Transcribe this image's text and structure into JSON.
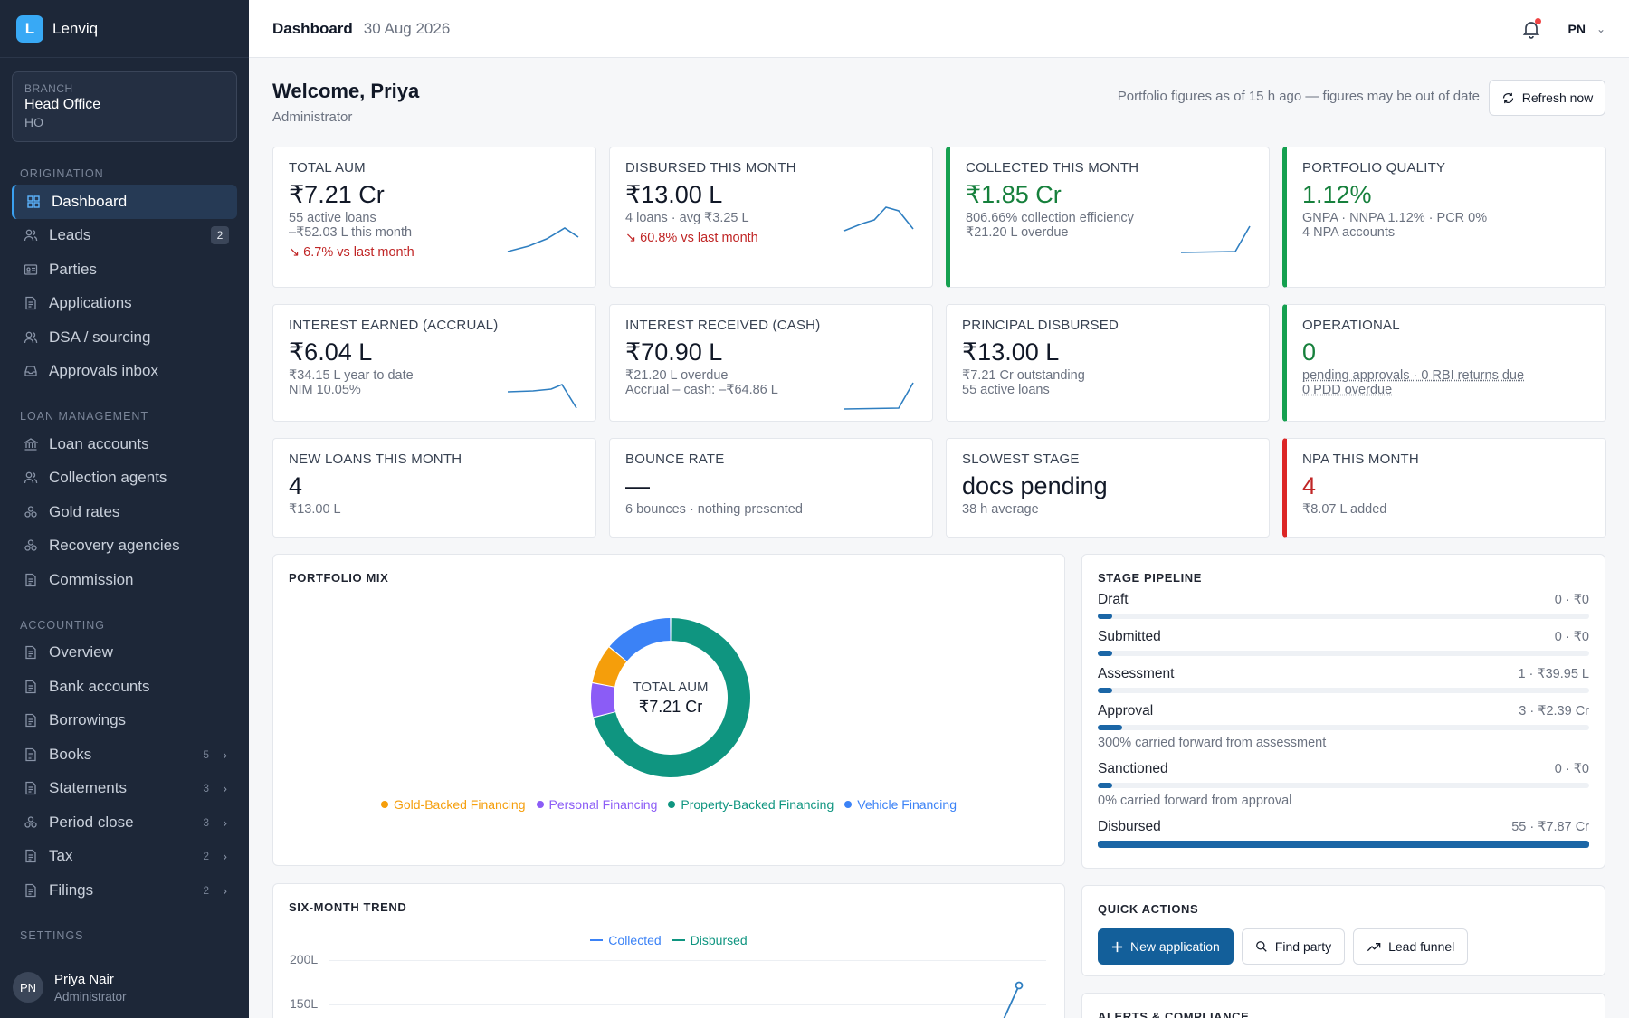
{
  "app": {
    "logo_letter": "L",
    "name": "Lenviq"
  },
  "branch": {
    "label": "BRANCH",
    "name": "Head Office",
    "code": "HO"
  },
  "sidebar": {
    "sections": [
      {
        "title": "ORIGINATION",
        "items": [
          {
            "label": "Dashboard",
            "icon": "grid-icon",
            "active": true
          },
          {
            "label": "Leads",
            "icon": "users-icon",
            "badge": "2"
          },
          {
            "label": "Parties",
            "icon": "id-card-icon"
          },
          {
            "label": "Applications",
            "icon": "document-icon"
          },
          {
            "label": "DSA / sourcing",
            "icon": "users-icon"
          },
          {
            "label": "Approvals inbox",
            "icon": "inbox-icon"
          }
        ]
      },
      {
        "title": "LOAN MANAGEMENT",
        "items": [
          {
            "label": "Loan accounts",
            "icon": "bank-icon"
          },
          {
            "label": "Collection agents",
            "icon": "users-icon"
          },
          {
            "label": "Gold rates",
            "icon": "coins-icon"
          },
          {
            "label": "Recovery agencies",
            "icon": "coins-icon"
          },
          {
            "label": "Commission",
            "icon": "document-icon"
          }
        ]
      },
      {
        "title": "ACCOUNTING",
        "items": [
          {
            "label": "Overview",
            "icon": "document-icon"
          },
          {
            "label": "Bank accounts",
            "icon": "document-icon"
          },
          {
            "label": "Borrowings",
            "icon": "document-icon"
          },
          {
            "label": "Books",
            "icon": "document-icon",
            "count": "5"
          },
          {
            "label": "Statements",
            "icon": "document-icon",
            "count": "3"
          },
          {
            "label": "Period close",
            "icon": "coins-icon",
            "count": "3"
          },
          {
            "label": "Tax",
            "icon": "document-icon",
            "count": "2"
          },
          {
            "label": "Filings",
            "icon": "document-icon",
            "count": "2"
          }
        ]
      },
      {
        "title": "SETTINGS",
        "items": []
      }
    ]
  },
  "user": {
    "initials": "PN",
    "name": "Priya Nair",
    "role": "Administrator"
  },
  "topbar": {
    "title": "Dashboard",
    "date": "30 Aug 2026",
    "initials": "PN"
  },
  "welcome": {
    "title": "Welcome, Priya",
    "role": "Administrator",
    "stale_note": "Portfolio figures as of 15 h ago — figures may be out of date",
    "refresh_label": "Refresh now"
  },
  "kpis": {
    "total_aum": {
      "label": "TOTAL AUM",
      "value": "₹7.21 Cr",
      "sub1": "55 active loans",
      "sub2": "–₹52.03 L this month",
      "delta": "↘ 6.7% vs last month"
    },
    "disbursed": {
      "label": "DISBURSED THIS MONTH",
      "value": "₹13.00 L",
      "sub1": "4 loans · avg ₹3.25 L",
      "delta": "↘ 60.8% vs last month"
    },
    "collected": {
      "label": "COLLECTED THIS MONTH",
      "value": "₹1.85 Cr",
      "sub1": "806.66% collection efficiency",
      "sub2": "₹21.20 L overdue"
    },
    "quality": {
      "label": "PORTFOLIO QUALITY",
      "value": "1.12%",
      "sub1": "GNPA · NNPA 1.12% · PCR 0%",
      "sub2": "4 NPA accounts"
    },
    "interest_accrual": {
      "label": "INTEREST EARNED (ACCRUAL)",
      "value": "₹6.04 L",
      "sub1": "₹34.15 L year to date",
      "sub2": "NIM 10.05%"
    },
    "interest_cash": {
      "label": "INTEREST RECEIVED (CASH)",
      "value": "₹70.90 L",
      "sub1": "₹21.20 L overdue",
      "sub2": "Accrual – cash: –₹64.86 L"
    },
    "principal": {
      "label": "PRINCIPAL DISBURSED",
      "value": "₹13.00 L",
      "sub1": "₹7.21 Cr outstanding",
      "sub2": "55 active loans"
    },
    "operational": {
      "label": "OPERATIONAL",
      "value": "0",
      "sub1": "pending approvals · 0 RBI returns due",
      "sub2": "0 PDD overdue"
    },
    "new_loans": {
      "label": "NEW LOANS THIS MONTH",
      "value": "4",
      "sub1": "₹13.00 L"
    },
    "bounce": {
      "label": "BOUNCE RATE",
      "value": "—",
      "sub1": "6 bounces · nothing presented"
    },
    "slowest": {
      "label": "SLOWEST STAGE",
      "value": "docs pending",
      "sub1": "38 h average"
    },
    "npa_month": {
      "label": "NPA THIS MONTH",
      "value": "4",
      "sub1": "₹8.07 L added"
    }
  },
  "portfolio_mix": {
    "title": "PORTFOLIO MIX",
    "center_label": "TOTAL AUM",
    "center_value": "₹7.21 Cr",
    "legend": [
      {
        "label": "Gold-Backed Financing",
        "color": "#f59e0b"
      },
      {
        "label": "Personal Financing",
        "color": "#8b5cf6"
      },
      {
        "label": "Property-Backed Financing",
        "color": "#0f9580"
      },
      {
        "label": "Vehicle Financing",
        "color": "#3b82f6"
      }
    ]
  },
  "stage_pipeline": {
    "title": "STAGE PIPELINE",
    "stages": [
      {
        "name": "Draft",
        "value": "0 · ₹0",
        "fill": 0.03
      },
      {
        "name": "Submitted",
        "value": "0 · ₹0",
        "fill": 0.03
      },
      {
        "name": "Assessment",
        "value": "1 · ₹39.95 L",
        "fill": 0.03
      },
      {
        "name": "Approval",
        "value": "3 · ₹2.39 Cr",
        "fill": 0.05,
        "note": "300% carried forward from assessment"
      },
      {
        "name": "Sanctioned",
        "value": "0 · ₹0",
        "fill": 0.03,
        "note": "0% carried forward from approval"
      },
      {
        "name": "Disbursed",
        "value": "55 · ₹7.87 Cr",
        "fill": 1.0
      }
    ]
  },
  "six_month_trend": {
    "title": "SIX-MONTH TREND",
    "legend": [
      {
        "label": "Collected",
        "color": "#3b82f6"
      },
      {
        "label": "Disbursed",
        "color": "#0f9580"
      }
    ],
    "y_ticks": [
      "200L",
      "150L"
    ]
  },
  "quick_actions": {
    "title": "QUICK ACTIONS",
    "buttons": [
      {
        "label": "New application"
      },
      {
        "label": "Find party"
      },
      {
        "label": "Lead funnel"
      }
    ]
  },
  "alerts": {
    "title": "ALERTS & COMPLIANCE"
  },
  "chart_data": [
    {
      "type": "pie",
      "title": "PORTFOLIO MIX",
      "categories": [
        "Property-Backed Financing",
        "Personal Financing",
        "Gold-Backed Financing",
        "Vehicle Financing"
      ],
      "values": [
        71,
        7,
        8,
        14
      ]
    },
    {
      "type": "line",
      "title": "SIX-MONTH TREND",
      "series": [
        {
          "name": "Collected",
          "values": []
        },
        {
          "name": "Disbursed",
          "values": []
        }
      ],
      "y_ticks": [
        "200L",
        "150L"
      ]
    }
  ]
}
